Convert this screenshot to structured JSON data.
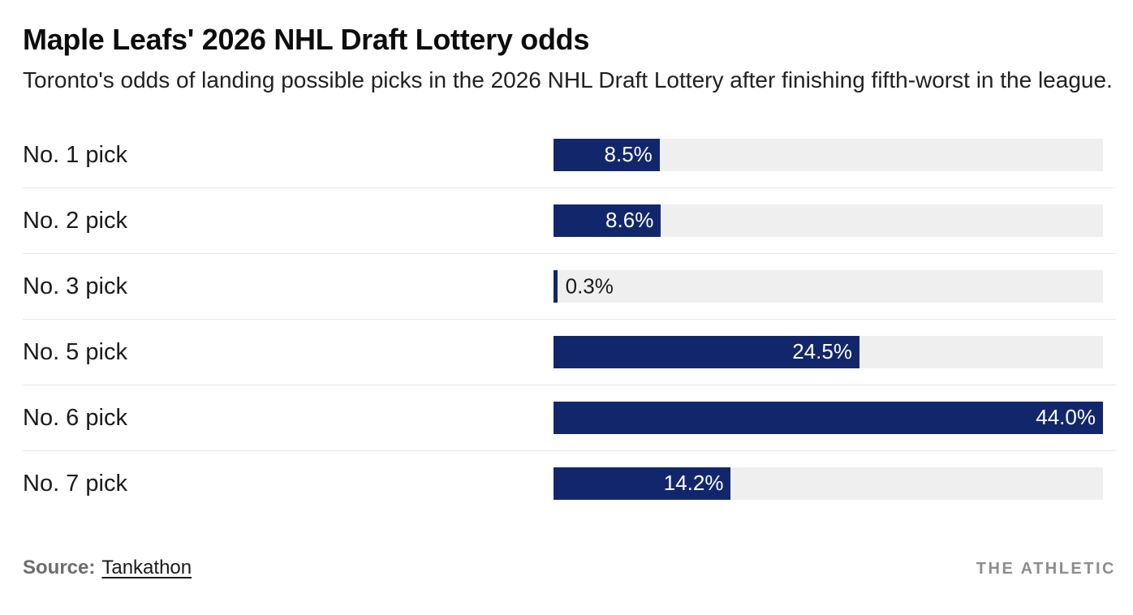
{
  "header": {
    "title": "Maple Leafs' 2026 NHL Draft Lottery odds",
    "subtitle": "Toronto's odds of landing possible picks in the 2026 NHL Draft Lottery after finishing fifth-worst in the league."
  },
  "chart_data": {
    "type": "bar",
    "orientation": "horizontal",
    "title": "Maple Leafs' 2026 NHL Draft Lottery odds",
    "subtitle": "Toronto's odds of landing possible picks in the 2026 NHL Draft Lottery after finishing fifth-worst in the league.",
    "categories": [
      "No. 1 pick",
      "No. 2 pick",
      "No. 3 pick",
      "No. 5 pick",
      "No. 6 pick",
      "No. 7 pick"
    ],
    "values": [
      8.5,
      8.6,
      0.3,
      24.5,
      44.0,
      14.2
    ],
    "value_labels": [
      "8.5%",
      "8.6%",
      "0.3%",
      "24.5%",
      "44.0%",
      "14.2%"
    ],
    "xlabel": "",
    "ylabel": "",
    "xlim": [
      0,
      44.0
    ],
    "grid": false,
    "legend": false,
    "bar_color": "#12276B",
    "track_color": "#EFEFEF",
    "divider_color": "#E9E9E9",
    "label_inside_color": "#FFFFFF",
    "label_outside_color": "#1A1A1A"
  },
  "footer": {
    "source_label": "Source:",
    "source_link": "Tankathon",
    "brand": "THE ATHLETIC"
  }
}
